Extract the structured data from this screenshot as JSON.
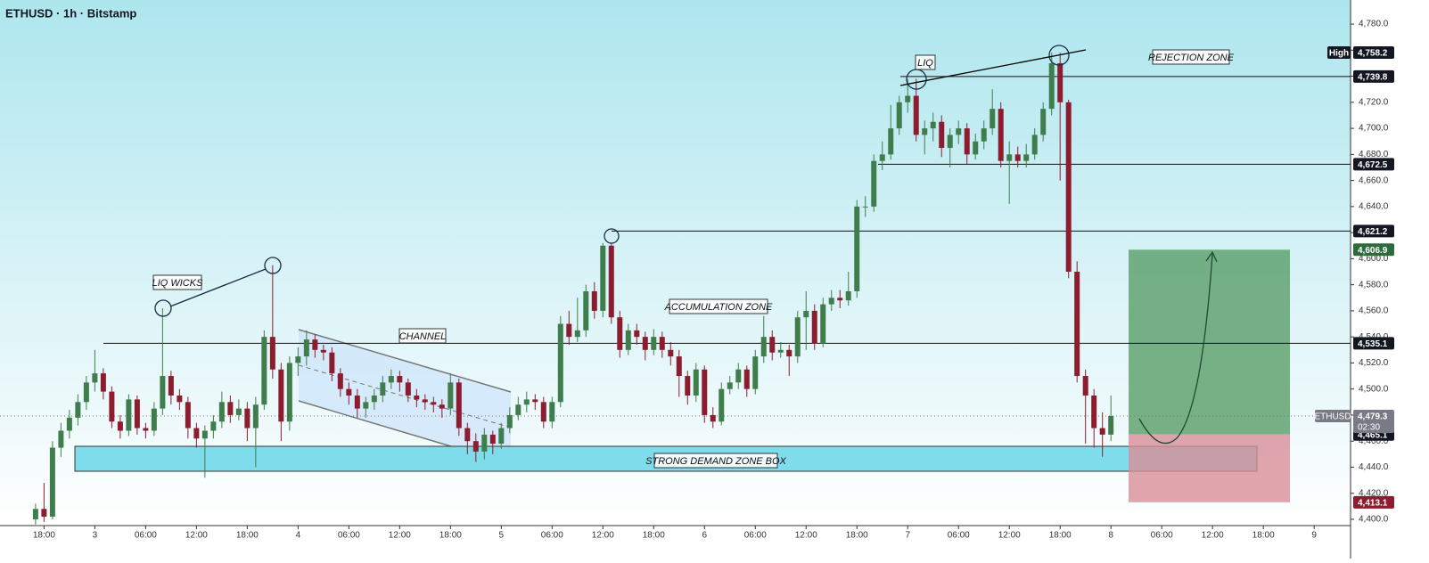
{
  "chart_data": {
    "type": "candlestick",
    "title": "ETHUSD · 1h · Bitstamp",
    "up_color": "#3f7d4c",
    "down_color": "#8c1c2e",
    "open": [
      4400,
      4408,
      4402,
      4455,
      4468,
      4478,
      4490,
      4505,
      4512,
      4498,
      4475,
      4468,
      4492,
      4470,
      4468,
      4485,
      4510,
      4495,
      4490,
      4470,
      4462,
      4468,
      4475,
      4490,
      4480,
      4485,
      4470,
      4488,
      4540,
      4515,
      4475,
      4520,
      4525,
      4538,
      4530,
      4528,
      4512,
      4500,
      4495,
      4485,
      4490,
      4495,
      4505,
      4510,
      4505,
      4495,
      4492,
      4490,
      4488,
      4485,
      4505,
      4470,
      4460,
      4452,
      4465,
      4458,
      4470,
      4480,
      4488,
      4492,
      4490,
      4475,
      4490,
      4550,
      4540,
      4545,
      4575,
      4560,
      4610,
      4555,
      4530,
      4545,
      4540,
      4530,
      4540,
      4530,
      4525,
      4510,
      4495,
      4515,
      4480,
      4475,
      4500,
      4505,
      4515,
      4500,
      4525,
      4540,
      4528,
      4530,
      4525,
      4555,
      4560,
      4535,
      4565,
      4570,
      4568,
      4575,
      4640,
      4640,
      4675,
      4680,
      4700,
      4720,
      4725,
      4695,
      4700,
      4705,
      4685,
      4695,
      4700,
      4680,
      4690,
      4700,
      4715,
      4675,
      4680,
      4675,
      4680,
      4695,
      4715,
      4750,
      4720,
      4590,
      4510,
      4495,
      4470,
      4465
    ],
    "high": [
      4412,
      4428,
      4460,
      4474,
      4484,
      4496,
      4510,
      4530,
      4516,
      4502,
      4480,
      4496,
      4495,
      4474,
      4490,
      4562,
      4514,
      4500,
      4494,
      4474,
      4472,
      4480,
      4498,
      4495,
      4492,
      4490,
      4494,
      4545,
      4595,
      4520,
      4525,
      4532,
      4545,
      4542,
      4534,
      4532,
      4516,
      4505,
      4500,
      4494,
      4500,
      4510,
      4515,
      4514,
      4508,
      4500,
      4496,
      4494,
      4492,
      4512,
      4508,
      4474,
      4466,
      4470,
      4468,
      4474,
      4486,
      4494,
      4498,
      4496,
      4494,
      4494,
      4556,
      4560,
      4570,
      4580,
      4582,
      4612,
      4612,
      4560,
      4550,
      4550,
      4544,
      4546,
      4544,
      4536,
      4530,
      4514,
      4520,
      4518,
      4486,
      4505,
      4510,
      4520,
      4518,
      4530,
      4556,
      4545,
      4536,
      4534,
      4560,
      4575,
      4565,
      4570,
      4576,
      4576,
      4590,
      4645,
      4648,
      4680,
      4690,
      4718,
      4725,
      4738,
      4738,
      4706,
      4712,
      4710,
      4700,
      4706,
      4704,
      4696,
      4706,
      4730,
      4720,
      4690,
      4686,
      4688,
      4700,
      4720,
      4758,
      4758,
      4722,
      4598,
      4515,
      4500,
      4482,
      4495
    ],
    "low": [
      4396,
      4398,
      4400,
      4448,
      4462,
      4472,
      4484,
      4498,
      4492,
      4470,
      4462,
      4464,
      4465,
      4462,
      4464,
      4480,
      4488,
      4484,
      4462,
      4455,
      4432,
      4462,
      4470,
      4474,
      4476,
      4460,
      4440,
      4484,
      4508,
      4460,
      4468,
      4510,
      4518,
      4524,
      4522,
      4506,
      4494,
      4488,
      4478,
      4478,
      4484,
      4490,
      4500,
      4498,
      4490,
      4486,
      4484,
      4482,
      4478,
      4480,
      4464,
      4450,
      4444,
      4446,
      4450,
      4454,
      4466,
      4476,
      4482,
      4484,
      4470,
      4470,
      4486,
      4534,
      4536,
      4540,
      4554,
      4555,
      4550,
      4524,
      4526,
      4534,
      4522,
      4526,
      4524,
      4518,
      4494,
      4488,
      4490,
      4474,
      4470,
      4472,
      4496,
      4500,
      4494,
      4496,
      4520,
      4522,
      4524,
      4510,
      4520,
      4530,
      4530,
      4532,
      4560,
      4562,
      4564,
      4570,
      4632,
      4636,
      4668,
      4676,
      4695,
      4712,
      4690,
      4680,
      4690,
      4678,
      4670,
      4688,
      4672,
      4676,
      4684,
      4695,
      4670,
      4642,
      4670,
      4670,
      4676,
      4690,
      4710,
      4660,
      4585,
      4505,
      4458,
      4455,
      4448,
      4460
    ],
    "close": [
      4408,
      4402,
      4455,
      4468,
      4478,
      4490,
      4505,
      4512,
      4498,
      4475,
      4468,
      4492,
      4470,
      4468,
      4485,
      4510,
      4495,
      4490,
      4470,
      4462,
      4468,
      4475,
      4490,
      4480,
      4485,
      4470,
      4488,
      4540,
      4515,
      4475,
      4520,
      4525,
      4538,
      4530,
      4528,
      4512,
      4500,
      4495,
      4485,
      4490,
      4495,
      4505,
      4510,
      4505,
      4495,
      4492,
      4490,
      4488,
      4485,
      4505,
      4470,
      4460,
      4452,
      4465,
      4458,
      4470,
      4480,
      4488,
      4492,
      4490,
      4475,
      4490,
      4550,
      4540,
      4545,
      4575,
      4560,
      4610,
      4555,
      4530,
      4545,
      4540,
      4530,
      4540,
      4530,
      4525,
      4510,
      4495,
      4515,
      4480,
      4475,
      4500,
      4505,
      4515,
      4500,
      4525,
      4540,
      4528,
      4530,
      4525,
      4555,
      4560,
      4535,
      4565,
      4570,
      4568,
      4575,
      4640,
      4640,
      4675,
      4680,
      4700,
      4720,
      4725,
      4695,
      4700,
      4705,
      4685,
      4695,
      4700,
      4680,
      4690,
      4700,
      4715,
      4675,
      4680,
      4675,
      4680,
      4695,
      4715,
      4750,
      4720,
      4590,
      4510,
      4495,
      4470,
      4465,
      4479.3
    ],
    "xlim": [
      -4.2,
      155.3
    ],
    "xticks": [
      {
        "value": 1,
        "label": "18:00"
      },
      {
        "value": 7,
        "label": "3"
      },
      {
        "value": 13,
        "label": "06:00"
      },
      {
        "value": 19,
        "label": "12:00"
      },
      {
        "value": 25,
        "label": "18:00"
      },
      {
        "value": 31,
        "label": "4"
      },
      {
        "value": 37,
        "label": "06:00"
      },
      {
        "value": 43,
        "label": "12:00"
      },
      {
        "value": 49,
        "label": "18:00"
      },
      {
        "value": 55,
        "label": "5"
      },
      {
        "value": 61,
        "label": "06:00"
      },
      {
        "value": 67,
        "label": "12:00"
      },
      {
        "value": 73,
        "label": "18:00"
      },
      {
        "value": 79,
        "label": "6"
      },
      {
        "value": 85,
        "label": "06:00"
      },
      {
        "value": 91,
        "label": "12:00"
      },
      {
        "value": 97,
        "label": "18:00"
      },
      {
        "value": 103,
        "label": "7"
      },
      {
        "value": 109,
        "label": "06:00"
      },
      {
        "value": 115,
        "label": "12:00"
      },
      {
        "value": 121,
        "label": "18:00"
      },
      {
        "value": 127,
        "label": "8"
      },
      {
        "value": 133,
        "label": "06:00"
      },
      {
        "value": 139,
        "label": "12:00"
      },
      {
        "value": 145,
        "label": "18:00"
      },
      {
        "value": 151,
        "label": "9"
      }
    ],
    "ylim": [
      4395.2,
      4798.5
    ],
    "yticks": [
      {
        "value": 4400,
        "label": "4,400.0"
      },
      {
        "value": 4420,
        "label": "4,420.0"
      },
      {
        "value": 4440,
        "label": "4,440.0"
      },
      {
        "value": 4460,
        "label": "4,460.0"
      },
      {
        "value": 4480,
        "label": "4,480.0"
      },
      {
        "value": 4500,
        "label": "4,500.0"
      },
      {
        "value": 4520,
        "label": "4,520.0"
      },
      {
        "value": 4540,
        "label": "4,540.0"
      },
      {
        "value": 4560,
        "label": "4,560.0"
      },
      {
        "value": 4580,
        "label": "4,580.0"
      },
      {
        "value": 4600,
        "label": "4,600.0"
      },
      {
        "value": 4620,
        "label": "4,620.0"
      },
      {
        "value": 4640,
        "label": "4,640.0"
      },
      {
        "value": 4660,
        "label": "4,660.0"
      },
      {
        "value": 4680,
        "label": "4,680.0"
      },
      {
        "value": 4700,
        "label": "4,700.0"
      },
      {
        "value": 4720,
        "label": "4,720.0"
      },
      {
        "value": 4740,
        "label": "4,740.0"
      },
      {
        "value": 4760,
        "label": "4,760.0"
      },
      {
        "value": 4780,
        "label": "4,780.0"
      }
    ],
    "high_marker": {
      "tag": "High",
      "value": 4758.2,
      "label": "4,758.2"
    },
    "levels": [
      {
        "value": 4739.8,
        "label": "4,739.8"
      },
      {
        "value": 4672.5,
        "label": "4,672.5"
      },
      {
        "value": 4621.2,
        "label": "4,621.2"
      },
      {
        "value": 4535.1,
        "label": "4,535.1"
      }
    ],
    "position": {
      "target": {
        "value": 4606.9,
        "label": "4,606.9",
        "color": "#2e6b3c"
      },
      "entry": {
        "value": 4465.1,
        "label": "4,465.1",
        "color": "#131722"
      },
      "stop": {
        "value": 4413.1,
        "label": "4,413.1",
        "color": "#8c1c2e"
      }
    },
    "last": {
      "symbol": "ETHUSD",
      "value": 4479.3,
      "label": "4,479.3",
      "countdown": "02:30"
    },
    "annotations": [
      "LIQ WICKS",
      "CHANNEL",
      "ACCUMULATION ZONE",
      "LIQ",
      "REJECTION ZONE",
      "STRONG DEMAND ZONE BOX"
    ]
  }
}
